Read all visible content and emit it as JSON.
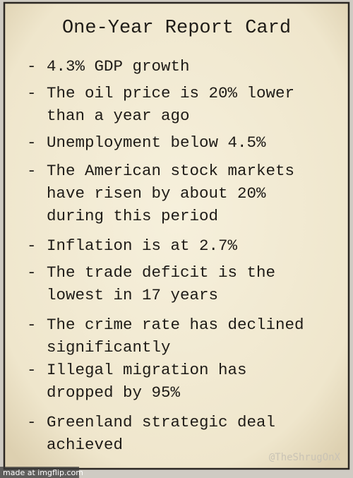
{
  "title": "One-Year Report Card",
  "items": [
    {
      "bullet": "-",
      "lines": [
        "4.3% GDP growth"
      ]
    },
    {
      "bullet": "-",
      "lines": [
        "The oil price is 20% lower",
        "than a year ago"
      ]
    },
    {
      "bullet": "-",
      "lines": [
        "Unemployment below 4.5%"
      ]
    },
    {
      "bullet": "-",
      "lines": [
        "The American stock markets",
        "have risen by about 20%",
        "during this period"
      ]
    },
    {
      "bullet": "-",
      "lines": [
        "Inflation is at 2.7%"
      ]
    },
    {
      "bullet": "-",
      "lines": [
        "The trade deficit is the",
        "lowest in 17 years"
      ]
    },
    {
      "bullet": "-",
      "lines": [
        "The crime rate has declined",
        "significantly"
      ]
    },
    {
      "bullet": "-",
      "lines": [
        "Illegal migration has",
        "dropped by 95%"
      ]
    },
    {
      "bullet": "-",
      "lines": [
        "Greenland strategic deal",
        "achieved"
      ]
    }
  ],
  "watermark": "@TheShrugOnX",
  "footer": "made at imgflip.com"
}
